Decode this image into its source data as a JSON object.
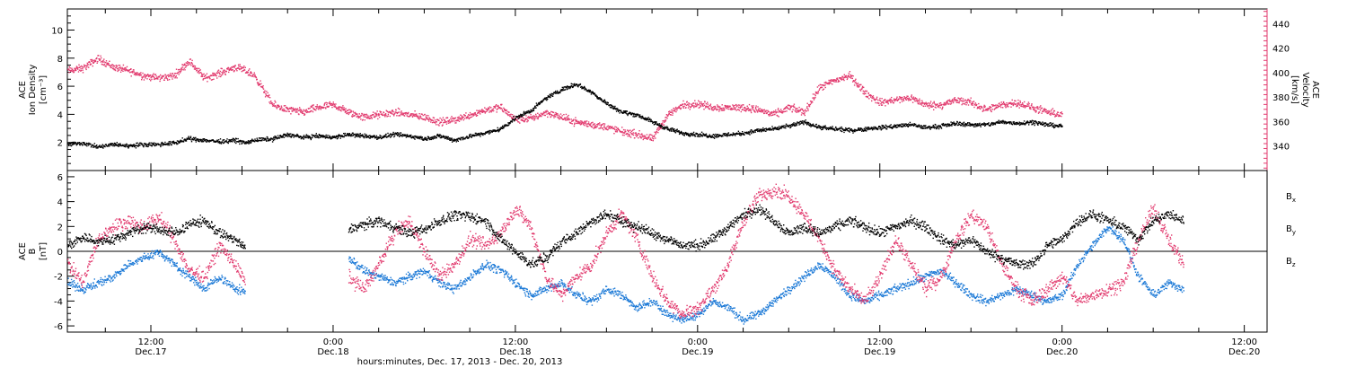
{
  "colors": {
    "black": "#000000",
    "magenta": "#e23a6e",
    "blue": "#1a78d6"
  },
  "time_axis": {
    "tick_labels_hm": [
      "12:00",
      "0:00",
      "12:00",
      "0:00",
      "12:00",
      "0:00",
      "12:00"
    ],
    "tick_labels_day": [
      "Dec.17",
      "Dec.18",
      "Dec.18",
      "Dec.19",
      "Dec.19",
      "Dec.20",
      "Dec.20"
    ],
    "tick_hours": [
      12,
      24,
      36,
      48,
      60,
      72,
      84
    ],
    "xlabel": "hours:minutes, Dec. 17, 2013 - Dec. 20, 2013",
    "xlim": [
      6.5,
      85.5
    ]
  },
  "chart_data": [
    {
      "type": "scatter",
      "panel": "plasma",
      "ylabel_left": [
        "ACE",
        "Ion Density",
        "[cm⁻³]"
      ],
      "ylabel_right": [
        "ACE",
        "Velocity",
        "[km/s]"
      ],
      "ylim_left": [
        0,
        11.5
      ],
      "ylim_right": [
        320,
        452
      ],
      "left_ticks": [
        2,
        4,
        6,
        8,
        10
      ],
      "left_tick_labels": [
        "2",
        "4",
        "6",
        "8",
        "10"
      ],
      "right_ticks": [
        340,
        360,
        380,
        400,
        420,
        440
      ],
      "right_tick_labels": [
        "340",
        "360",
        "380",
        "400",
        "420",
        "440"
      ],
      "series": [
        {
          "color_key": "black",
          "axis": "left",
          "x": [
            6.5,
            7.5,
            8.5,
            9.5,
            10.5,
            11.5,
            12.5,
            13.5,
            14.5,
            15.5,
            16.5,
            17.5,
            18.2,
            18.8,
            20.0,
            21.0,
            22.0,
            23.0,
            24.0,
            25.0,
            26.0,
            27.0,
            28.0,
            29.0,
            30.0,
            31.0,
            32.0,
            33.0,
            34.0,
            35.0,
            36.0,
            37.0,
            38.0,
            39.0,
            40.0,
            41.0,
            42.0,
            43.0,
            44.0,
            45.0,
            46.0,
            47.0,
            48.0,
            49.0,
            50.0,
            51.0,
            52.0,
            53.0,
            54.0,
            55.0,
            56.0,
            57.0,
            58.0,
            59.0,
            60.0,
            61.0,
            62.0,
            63.0,
            64.0,
            65.0,
            66.0,
            67.0,
            68.0,
            69.0,
            70.0,
            71.0,
            72.0
          ],
          "y": [
            1.9,
            2.0,
            1.7,
            1.9,
            1.8,
            1.9,
            1.9,
            2.0,
            2.3,
            2.2,
            2.1,
            2.2,
            2.0,
            2.2,
            2.3,
            2.6,
            2.4,
            2.5,
            2.4,
            2.6,
            2.5,
            2.4,
            2.6,
            2.5,
            2.3,
            2.5,
            2.2,
            2.5,
            2.7,
            3.0,
            3.8,
            4.3,
            5.2,
            5.8,
            6.2,
            5.6,
            4.8,
            4.2,
            4.0,
            3.5,
            3.0,
            2.7,
            2.6,
            2.5,
            2.6,
            2.7,
            2.9,
            3.0,
            3.2,
            3.5,
            3.1,
            3.0,
            2.9,
            3.0,
            3.1,
            3.2,
            3.3,
            3.1,
            3.2,
            3.4,
            3.3,
            3.3,
            3.5,
            3.4,
            3.5,
            3.3,
            3.2
          ],
          "spread": 0.22
        },
        {
          "color_key": "magenta",
          "axis": "right",
          "x": [
            6.5,
            7.5,
            8.5,
            9.5,
            10.5,
            11.5,
            12.5,
            13.5,
            14.5,
            15.5,
            16.5,
            17.5,
            18.2,
            18.8,
            20.0,
            21.0,
            22.0,
            23.0,
            24.0,
            25.0,
            26.0,
            27.0,
            28.0,
            29.0,
            30.0,
            31.0,
            32.0,
            33.0,
            34.0,
            35.0,
            36.0,
            37.0,
            38.0,
            39.0,
            40.0,
            41.0,
            42.0,
            43.0,
            44.0,
            45.0,
            46.0,
            47.0,
            48.0,
            49.0,
            50.0,
            51.0,
            52.0,
            53.0,
            54.0,
            55.0,
            56.0,
            57.0,
            58.0,
            59.0,
            60.0,
            61.0,
            62.0,
            63.0,
            64.0,
            65.0,
            66.0,
            67.0,
            68.0,
            69.0,
            70.0,
            71.0,
            72.0
          ],
          "y": [
            402,
            404,
            412,
            405,
            402,
            398,
            396,
            398,
            410,
            396,
            400,
            405,
            402,
            398,
            374,
            370,
            368,
            372,
            374,
            368,
            364,
            366,
            368,
            366,
            364,
            360,
            362,
            366,
            370,
            372,
            362,
            363,
            368,
            364,
            360,
            358,
            356,
            352,
            350,
            346,
            366,
            374,
            375,
            372,
            372,
            372,
            370,
            366,
            372,
            368,
            388,
            394,
            398,
            384,
            376,
            378,
            380,
            374,
            374,
            378,
            376,
            370,
            374,
            376,
            372,
            368,
            366
          ],
          "spread": 4.5
        }
      ]
    },
    {
      "type": "scatter",
      "panel": "magnetic",
      "ylabel_left": [
        "ACE",
        "B",
        "[nT]"
      ],
      "ylim": [
        -6.5,
        6.5
      ],
      "left_ticks": [
        -6,
        -4,
        -2,
        0,
        2,
        4,
        6
      ],
      "left_tick_labels": [
        "-6",
        "-4",
        "-2",
        "0",
        "2",
        "4",
        "6"
      ],
      "legend": [
        {
          "label": "B",
          "sub": "x",
          "color_key": "black"
        },
        {
          "label": "B",
          "sub": "y",
          "color_key": "blue"
        },
        {
          "label": "B",
          "sub": "z",
          "color_key": "magenta"
        }
      ],
      "series": [
        {
          "name": "Bx",
          "color_key": "black",
          "x": [
            6.5,
            7.5,
            8.5,
            9.5,
            10.5,
            11.5,
            12.5,
            13.5,
            14.5,
            15.5,
            16.5,
            17.5,
            18.2,
            25.0,
            26.0,
            27.0,
            28.0,
            29.0,
            30.0,
            31.0,
            32.0,
            33.0,
            34.0,
            35.0,
            36.0,
            37.0,
            38.0,
            39.0,
            40.0,
            41.0,
            42.0,
            43.0,
            44.0,
            45.0,
            46.0,
            47.0,
            48.0,
            49.0,
            50.0,
            51.0,
            52.0,
            53.0,
            54.0,
            55.0,
            56.0,
            57.0,
            58.0,
            59.0,
            60.0,
            61.0,
            62.0,
            63.0,
            64.0,
            65.0,
            66.0,
            67.0,
            68.0,
            69.0,
            70.0,
            71.0,
            72.0,
            73.0,
            74.0,
            75.0,
            76.0,
            77.0,
            78.0,
            79.0,
            80.0
          ],
          "y": [
            0.5,
            1.2,
            0.8,
            1.0,
            1.5,
            2.0,
            1.8,
            1.5,
            2.2,
            2.5,
            1.5,
            1.0,
            0.2,
            1.8,
            2.2,
            2.5,
            2.0,
            1.5,
            1.8,
            2.5,
            3.0,
            2.8,
            2.5,
            1.0,
            0.0,
            -1.0,
            -0.5,
            0.8,
            1.5,
            2.5,
            3.0,
            2.5,
            2.0,
            1.5,
            1.0,
            0.5,
            0.5,
            1.0,
            2.0,
            3.0,
            3.5,
            2.5,
            1.5,
            2.0,
            1.5,
            2.0,
            2.5,
            2.0,
            1.5,
            2.0,
            2.5,
            2.0,
            1.0,
            0.5,
            1.0,
            0.0,
            -0.5,
            -1.0,
            -1.0,
            0.5,
            1.0,
            2.5,
            3.0,
            2.5,
            2.0,
            1.0,
            2.5,
            3.0,
            2.5
          ],
          "spread": 0.6
        },
        {
          "name": "By",
          "color_key": "blue",
          "x": [
            6.5,
            7.5,
            8.5,
            9.5,
            10.5,
            11.5,
            12.5,
            13.5,
            14.5,
            15.5,
            16.5,
            17.5,
            18.2,
            25.0,
            26.0,
            27.0,
            28.0,
            29.0,
            30.0,
            31.0,
            32.0,
            33.0,
            34.0,
            35.0,
            36.0,
            37.0,
            38.0,
            39.0,
            40.0,
            41.0,
            42.0,
            43.0,
            44.0,
            45.0,
            46.0,
            47.0,
            48.0,
            49.0,
            50.0,
            51.0,
            52.0,
            53.0,
            54.0,
            55.0,
            56.0,
            57.0,
            58.0,
            59.0,
            60.0,
            61.0,
            62.0,
            63.0,
            64.0,
            65.0,
            66.0,
            67.0,
            68.0,
            69.0,
            70.0,
            71.0,
            72.0,
            73.0,
            74.0,
            75.0,
            76.0,
            77.0,
            78.0,
            79.0,
            80.0
          ],
          "y": [
            -2.5,
            -3.0,
            -2.5,
            -2.0,
            -1.0,
            -0.5,
            0.0,
            -1.0,
            -2.0,
            -3.0,
            -2.0,
            -3.0,
            -3.2,
            -0.5,
            -1.5,
            -2.0,
            -2.5,
            -2.0,
            -1.5,
            -2.5,
            -3.0,
            -2.0,
            -1.0,
            -1.5,
            -2.5,
            -3.5,
            -3.0,
            -2.5,
            -3.5,
            -4.0,
            -3.0,
            -3.5,
            -4.5,
            -4.0,
            -5.0,
            -5.5,
            -5.0,
            -4.0,
            -4.5,
            -5.5,
            -5.0,
            -4.0,
            -3.0,
            -2.0,
            -1.0,
            -2.0,
            -3.5,
            -4.0,
            -3.5,
            -3.0,
            -2.5,
            -2.0,
            -1.5,
            -2.5,
            -3.5,
            -4.0,
            -3.5,
            -3.0,
            -3.5,
            -4.0,
            -3.5,
            -1.0,
            0.5,
            2.0,
            1.0,
            -2.0,
            -3.5,
            -2.5,
            -3.0
          ],
          "spread": 0.5
        },
        {
          "name": "Bz",
          "color_key": "magenta",
          "x": [
            6.5,
            7.5,
            8.5,
            9.5,
            10.5,
            11.5,
            12.5,
            13.5,
            14.5,
            15.5,
            16.5,
            17.5,
            18.2,
            25.0,
            26.0,
            27.0,
            28.0,
            29.0,
            30.0,
            31.0,
            32.0,
            33.0,
            34.0,
            35.0,
            36.0,
            37.0,
            38.0,
            39.0,
            40.0,
            41.0,
            42.0,
            43.0,
            44.0,
            45.0,
            46.0,
            47.0,
            48.0,
            49.0,
            50.0,
            51.0,
            52.0,
            53.0,
            54.0,
            55.0,
            56.0,
            57.0,
            58.0,
            59.0,
            60.0,
            61.0,
            62.0,
            63.0,
            64.0,
            65.0,
            66.0,
            67.0,
            68.0,
            69.0,
            70.0,
            71.0,
            72.0,
            73.0,
            74.0,
            75.0,
            76.0,
            77.0,
            78.0,
            79.0,
            80.0
          ],
          "y": [
            -1.0,
            -2.5,
            1.0,
            2.0,
            2.5,
            2.0,
            2.8,
            1.0,
            -1.5,
            -2.0,
            0.5,
            -1.0,
            -2.5,
            -2.0,
            -3.0,
            -1.0,
            1.5,
            2.5,
            0.0,
            -2.0,
            -1.0,
            1.0,
            0.5,
            1.5,
            3.5,
            2.0,
            -2.0,
            -3.5,
            -2.0,
            -1.0,
            1.5,
            3.0,
            1.0,
            -2.0,
            -4.0,
            -5.0,
            -4.5,
            -3.0,
            -1.0,
            2.5,
            4.5,
            5.0,
            4.5,
            3.0,
            1.0,
            -1.5,
            -3.0,
            -4.0,
            -2.0,
            1.0,
            -1.0,
            -3.0,
            -2.0,
            1.0,
            3.0,
            2.0,
            -1.0,
            -3.0,
            -4.0,
            -3.0,
            -2.0,
            -4.0,
            -3.5,
            -3.0,
            -2.5,
            1.0,
            3.5,
            1.0,
            -1.0
          ],
          "spread": 0.8
        }
      ]
    }
  ]
}
